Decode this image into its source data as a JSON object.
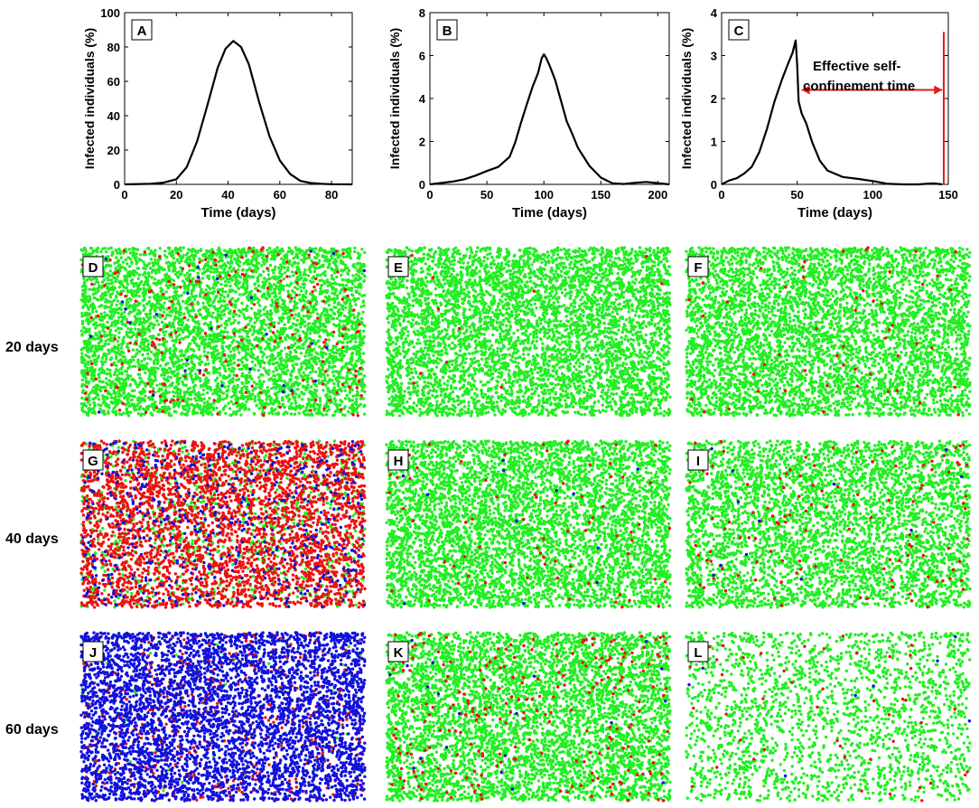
{
  "chart_data": [
    {
      "id": "A",
      "type": "line",
      "xlabel": "Time (days)",
      "ylabel": "Infected individuals (%)",
      "xlim": [
        0,
        88
      ],
      "ylim": [
        0,
        100
      ],
      "xticks": [
        0,
        20,
        40,
        60,
        80
      ],
      "yticks": [
        0,
        20,
        40,
        60,
        80,
        100
      ],
      "series": [
        {
          "name": "infected",
          "color": "#000000",
          "x": [
            0,
            10,
            15,
            20,
            24,
            28,
            32,
            36,
            39,
            42,
            45,
            48,
            52,
            56,
            60,
            64,
            68,
            72,
            76,
            80,
            88
          ],
          "y": [
            0,
            0.3,
            1,
            3,
            10,
            25,
            46,
            68,
            79,
            83.5,
            80,
            70,
            48,
            28,
            14,
            6,
            2,
            0.8,
            0.3,
            0.1,
            0
          ]
        }
      ]
    },
    {
      "id": "B",
      "type": "line",
      "xlabel": "Time (days)",
      "ylabel": "Infected individuals (%)",
      "xlim": [
        0,
        210
      ],
      "ylim": [
        0,
        8
      ],
      "xticks": [
        0,
        50,
        100,
        150,
        200
      ],
      "yticks": [
        0,
        2,
        4,
        6,
        8
      ],
      "series": [
        {
          "name": "infected",
          "color": "#000000",
          "x": [
            0,
            20,
            30,
            40,
            50,
            60,
            70,
            75,
            80,
            85,
            90,
            95,
            98,
            100,
            102,
            105,
            110,
            115,
            120,
            125,
            130,
            140,
            150,
            160,
            170,
            180,
            190,
            210
          ],
          "y": [
            0,
            0.05,
            0.15,
            0.4,
            0.7,
            0.9,
            1.3,
            1.9,
            2.8,
            3.7,
            4.6,
            5.3,
            5.9,
            6.0,
            5.8,
            5.5,
            4.9,
            4.0,
            3.0,
            2.3,
            1.6,
            0.8,
            0.35,
            0.15,
            0.08,
            0.05,
            0.02,
            0
          ]
        }
      ]
    },
    {
      "id": "C",
      "type": "line",
      "xlabel": "Time (days)",
      "ylabel": "Infected individuals (%)",
      "xlim": [
        0,
        150
      ],
      "ylim": [
        0,
        4
      ],
      "xticks": [
        0,
        50,
        100,
        150
      ],
      "yticks": [
        0,
        1,
        2,
        3,
        4
      ],
      "series": [
        {
          "name": "infected",
          "color": "#000000",
          "x": [
            0,
            5,
            10,
            15,
            20,
            25,
            30,
            35,
            40,
            44,
            47,
            49,
            50,
            51,
            53,
            56,
            60,
            65,
            70,
            80,
            90,
            100,
            110,
            120,
            130,
            140,
            146
          ],
          "y": [
            0,
            0.05,
            0.1,
            0.25,
            0.45,
            0.8,
            1.3,
            1.9,
            2.4,
            2.8,
            3.1,
            3.4,
            2.8,
            1.9,
            1.6,
            1.4,
            1.0,
            0.6,
            0.35,
            0.15,
            0.08,
            0.05,
            0.03,
            0.02,
            0.01,
            0.01,
            0
          ]
        }
      ],
      "annotation": {
        "text_line1": "Effective self-",
        "text_line2": "confinement time",
        "arrow_from_x": 53,
        "arrow_to_x": 146,
        "arrow_y": 2.2,
        "vline_x": 147,
        "vline_top": 3.55,
        "color": "#e31a1c"
      }
    }
  ],
  "scatter_panels": [
    {
      "id": "D",
      "row": 0,
      "col": 0,
      "mix": {
        "green": 0.96,
        "red": 0.035,
        "blue": 0.005
      },
      "density": 1.0
    },
    {
      "id": "E",
      "row": 0,
      "col": 1,
      "mix": {
        "green": 0.998,
        "red": 0.002,
        "blue": 0.0
      },
      "density": 1.0
    },
    {
      "id": "F",
      "row": 0,
      "col": 2,
      "mix": {
        "green": 0.99,
        "red": 0.01,
        "blue": 0.0
      },
      "density": 0.95
    },
    {
      "id": "G",
      "row": 1,
      "col": 0,
      "mix": {
        "green": 0.18,
        "red": 0.72,
        "blue": 0.1
      },
      "density": 1.0
    },
    {
      "id": "H",
      "row": 1,
      "col": 1,
      "mix": {
        "green": 0.985,
        "red": 0.013,
        "blue": 0.002
      },
      "density": 1.0
    },
    {
      "id": "I",
      "row": 1,
      "col": 2,
      "mix": {
        "green": 0.97,
        "red": 0.027,
        "blue": 0.003
      },
      "density": 0.85
    },
    {
      "id": "J",
      "row": 2,
      "col": 0,
      "mix": {
        "green": 0.01,
        "red": 0.09,
        "blue": 0.9
      },
      "density": 1.0
    },
    {
      "id": "K",
      "row": 2,
      "col": 1,
      "mix": {
        "green": 0.955,
        "red": 0.04,
        "blue": 0.005
      },
      "density": 1.0
    },
    {
      "id": "L",
      "row": 2,
      "col": 2,
      "mix": {
        "green": 0.975,
        "red": 0.02,
        "blue": 0.005
      },
      "density": 0.4
    }
  ],
  "row_labels": [
    "20 days",
    "40 days",
    "60 days"
  ],
  "colors": {
    "green": "#22ee22",
    "red": "#ee1111",
    "blue": "#1111dd"
  }
}
